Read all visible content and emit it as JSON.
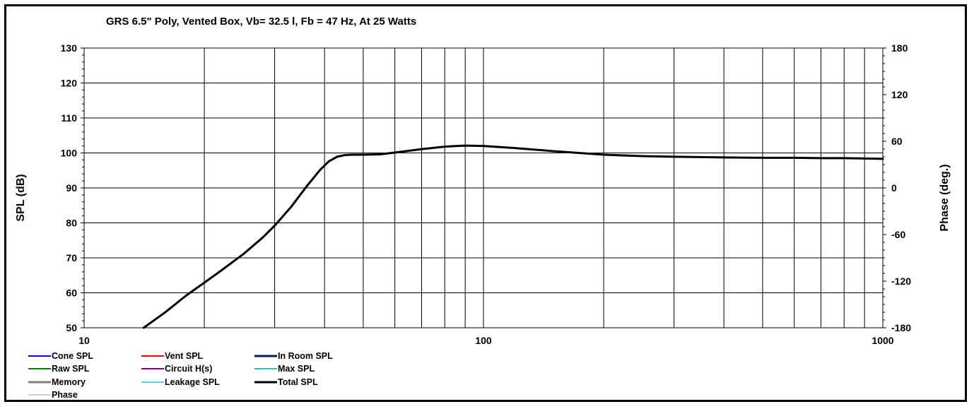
{
  "chart_data": {
    "type": "line",
    "title": "GRS 6.5\" Poly,  Vented Box, Vb= 32.5 l,  Fb = 47 Hz,  At 25 Watts",
    "xlabel": "",
    "ylabel": "SPL (dB)",
    "y2label": "Phase (deg.)",
    "xscale": "log",
    "xlim": [
      10,
      1000
    ],
    "ylim": [
      50,
      130
    ],
    "y2lim": [
      -180,
      180
    ],
    "x_tick_labels": [
      "10",
      "100",
      "1000"
    ],
    "y_ticks": [
      50,
      60,
      70,
      80,
      90,
      100,
      110,
      120,
      130
    ],
    "y2_ticks": [
      -180,
      -120,
      -60,
      0,
      60,
      120,
      180
    ],
    "grid_vertical": true,
    "grid_horizontal": true,
    "legend_placement": "bottom-left",
    "series": [
      {
        "name": "Total SPL",
        "color": "#000000",
        "x": [
          14.1,
          16,
          18,
          20,
          22,
          25,
          28,
          30,
          33,
          36,
          39,
          41,
          43,
          45,
          47,
          50,
          55,
          60,
          70,
          80,
          90,
          100,
          120,
          150,
          200,
          250,
          300,
          400,
          500,
          600,
          700,
          800,
          900,
          1000
        ],
        "y": [
          50,
          54.5,
          59.2,
          62.9,
          66.3,
          71.0,
          75.8,
          79.2,
          84.6,
          90.3,
          95.2,
          97.6,
          98.9,
          99.4,
          99.5,
          99.5,
          99.6,
          100.1,
          101.1,
          101.8,
          102.1,
          102.0,
          101.4,
          100.5,
          99.5,
          99.1,
          98.9,
          98.7,
          98.6,
          98.6,
          98.5,
          98.5,
          98.4,
          98.3
        ]
      }
    ]
  },
  "legend": [
    {
      "label": "Cone SPL",
      "color": "#0000ff",
      "width": 2
    },
    {
      "label": "Raw SPL",
      "color": "#008000",
      "width": 2
    },
    {
      "label": "Memory",
      "color": "#808080",
      "width": 3
    },
    {
      "label": "Phase",
      "color": "#a0a0a0",
      "width": 1
    },
    {
      "label": "Vent SPL",
      "color": "#ff0000",
      "width": 2
    },
    {
      "label": "Circuit H(s)",
      "color": "#800080",
      "width": 2
    },
    {
      "label": "Leakage SPL",
      "color": "#66ccee",
      "width": 2
    },
    {
      "label": "In Room SPL",
      "color": "#002050",
      "width": 3
    },
    {
      "label": "Max SPL",
      "color": "#33bbbb",
      "width": 2
    },
    {
      "label": "Total SPL",
      "color": "#000000",
      "width": 3
    }
  ]
}
